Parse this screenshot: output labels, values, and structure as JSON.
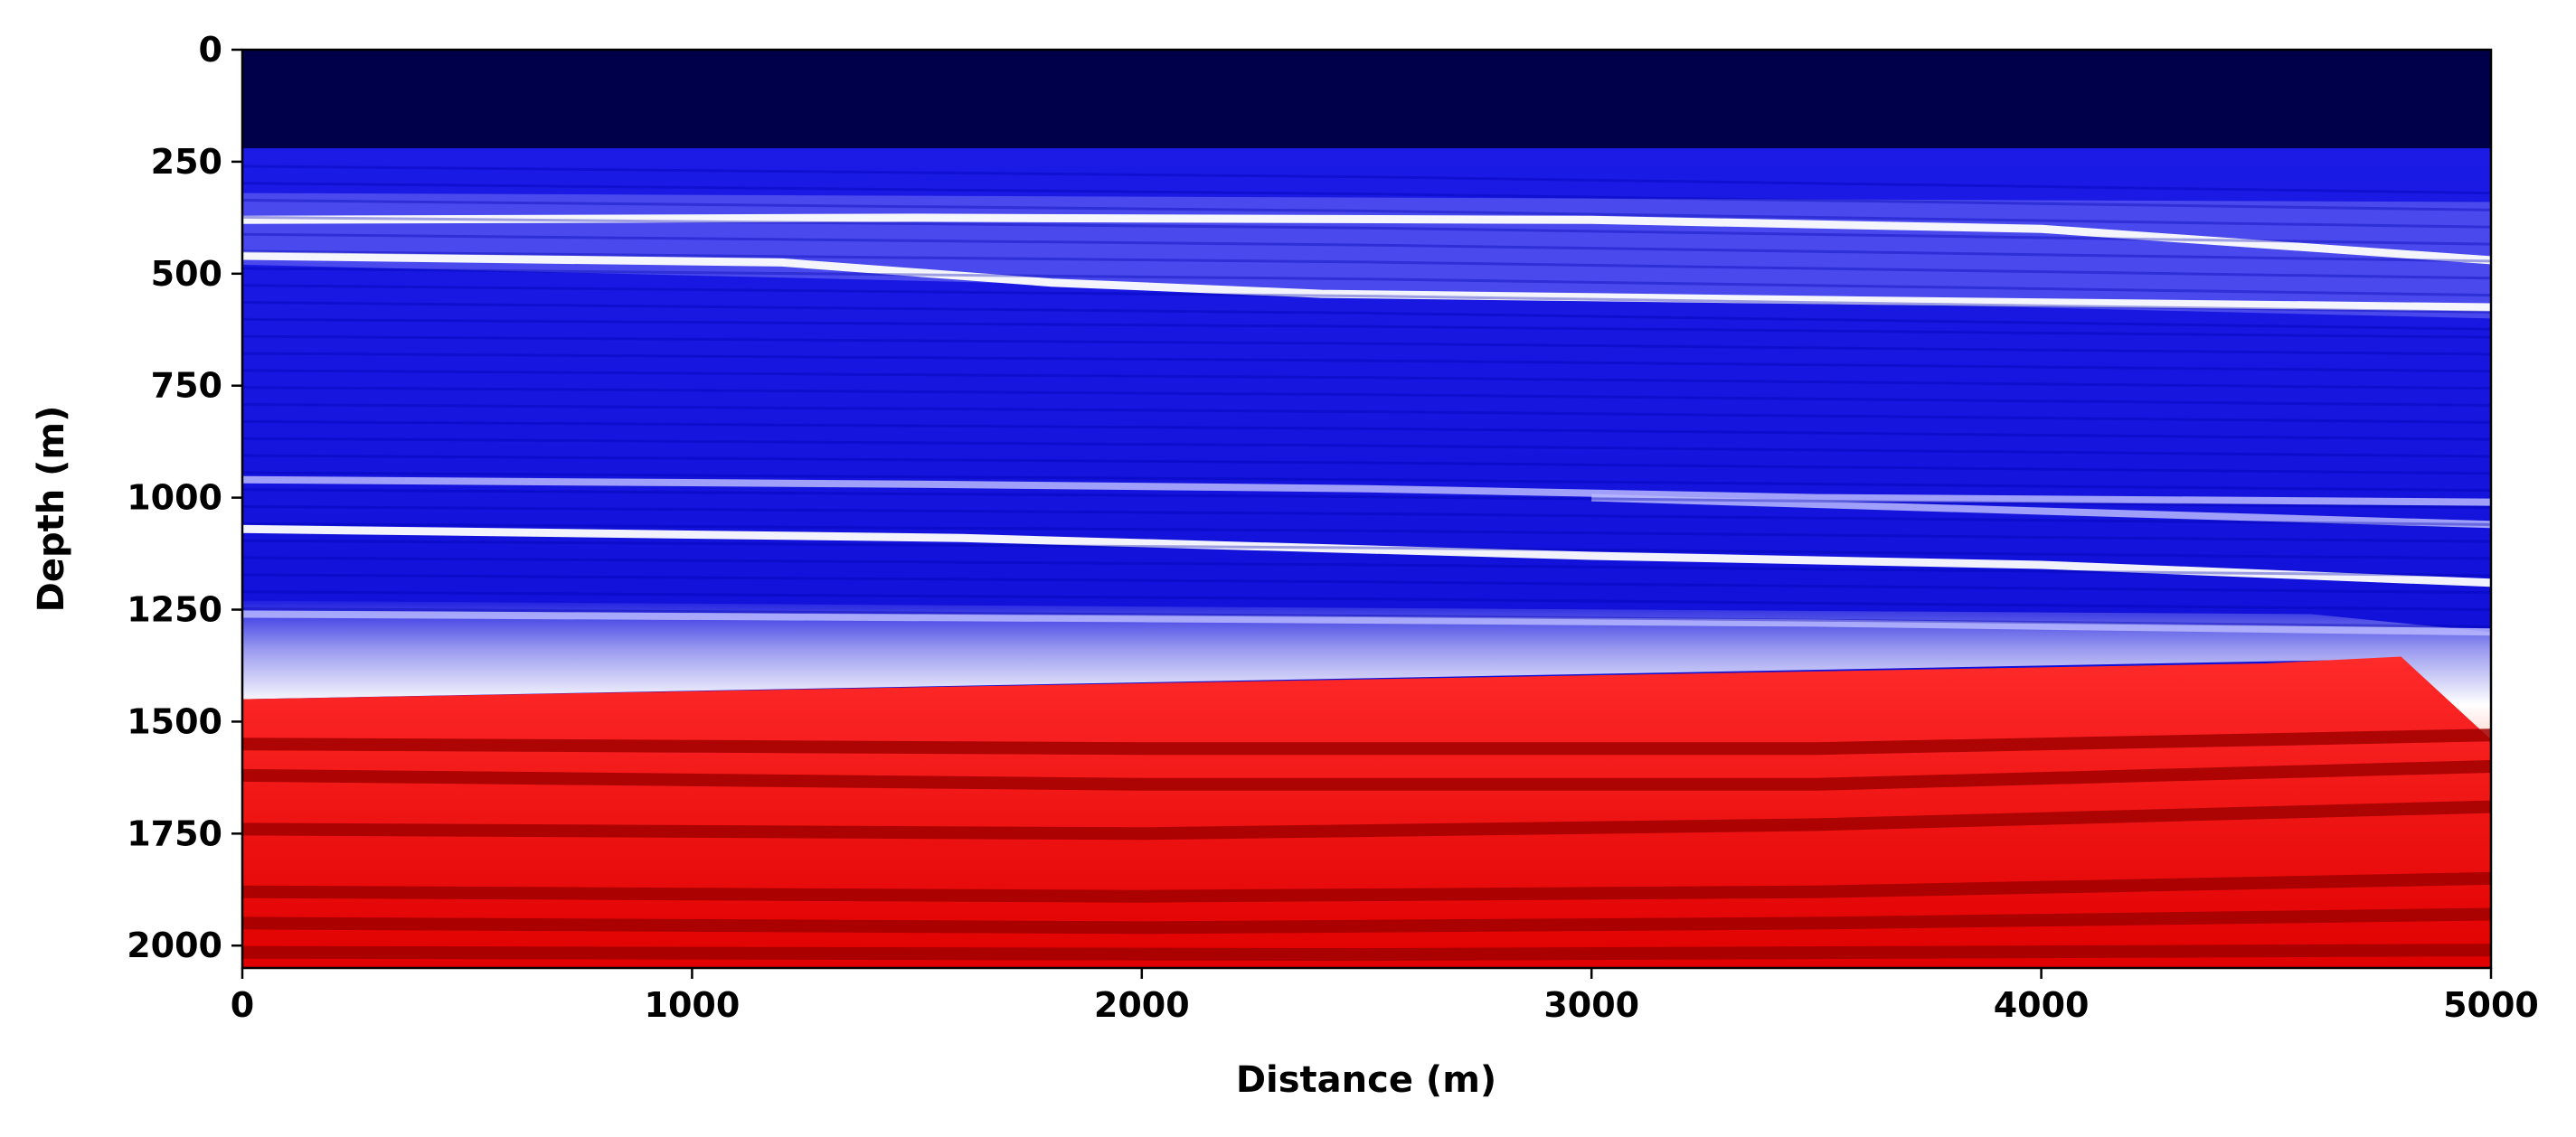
{
  "chart_data": {
    "type": "heatmap",
    "xlabel": "Distance (m)",
    "ylabel": "Depth (m)",
    "xlim": [
      0,
      5000
    ],
    "ylim": [
      2050,
      0
    ],
    "x_ticks": [
      0,
      1000,
      2000,
      3000,
      4000,
      5000
    ],
    "y_ticks": [
      0,
      250,
      500,
      750,
      1000,
      1250,
      1500,
      1750,
      2000
    ],
    "colormap": "seismic",
    "colors": {
      "water": "#00004a",
      "blue": "#0000d8",
      "white": "#f2f2ff",
      "red": "#ff1a1a",
      "dark_red": "#a00000"
    },
    "layers": [
      {
        "label": "water",
        "depth_top": 0,
        "depth_bottom": 220
      },
      {
        "label": "upper-layered-blue",
        "depth_top": 220,
        "depth_bottom_left": 480,
        "depth_bottom_right": 600
      },
      {
        "label": "mid-blue",
        "depth_bottom_left": 1200,
        "depth_bottom_right": 1300
      },
      {
        "label": "transition-white",
        "depth_bottom_left": 1450,
        "depth_bottom_right": 1370
      },
      {
        "label": "red-layered",
        "depth_top_left": 1450,
        "depth_top_right": 1370,
        "depth_bottom": 2050
      }
    ],
    "reflectors": [
      {
        "tone": "white",
        "depths": [
          [
            0,
            460
          ],
          [
            1200,
            475
          ],
          [
            1800,
            520
          ],
          [
            2400,
            545
          ],
          [
            3600,
            560
          ],
          [
            5000,
            575
          ]
        ]
      },
      {
        "tone": "white",
        "depths": [
          [
            0,
            380
          ],
          [
            1500,
            375
          ],
          [
            3000,
            380
          ],
          [
            4000,
            400
          ],
          [
            5000,
            470
          ]
        ]
      },
      {
        "tone": "light",
        "depths": [
          [
            0,
            960
          ],
          [
            1500,
            970
          ],
          [
            2500,
            980
          ],
          [
            3500,
            1000
          ],
          [
            5000,
            1010
          ]
        ]
      },
      {
        "tone": "white",
        "depths": [
          [
            0,
            1070
          ],
          [
            1600,
            1090
          ],
          [
            3000,
            1130
          ],
          [
            4000,
            1150
          ],
          [
            5000,
            1190
          ]
        ]
      },
      {
        "tone": "light",
        "depths": [
          [
            3000,
            1000
          ],
          [
            4000,
            1030
          ],
          [
            5000,
            1060
          ]
        ]
      },
      {
        "tone": "light",
        "depths": [
          [
            0,
            1260
          ],
          [
            2000,
            1270
          ],
          [
            3500,
            1280
          ],
          [
            5000,
            1300
          ]
        ]
      },
      {
        "tone": "dark",
        "depths": [
          [
            0,
            1550
          ],
          [
            2000,
            1560
          ],
          [
            3500,
            1560
          ],
          [
            5000,
            1530
          ]
        ]
      },
      {
        "tone": "dark",
        "depths": [
          [
            0,
            1620
          ],
          [
            2000,
            1640
          ],
          [
            3500,
            1640
          ],
          [
            5000,
            1600
          ]
        ]
      },
      {
        "tone": "dark",
        "depths": [
          [
            0,
            1740
          ],
          [
            2000,
            1750
          ],
          [
            3500,
            1730
          ],
          [
            5000,
            1690
          ]
        ]
      },
      {
        "tone": "dark",
        "depths": [
          [
            0,
            1880
          ],
          [
            2000,
            1890
          ],
          [
            3500,
            1880
          ],
          [
            5000,
            1850
          ]
        ]
      },
      {
        "tone": "dark",
        "depths": [
          [
            0,
            1950
          ],
          [
            2000,
            1960
          ],
          [
            3500,
            1950
          ],
          [
            5000,
            1930
          ]
        ]
      },
      {
        "tone": "dark",
        "depths": [
          [
            0,
            2015
          ],
          [
            2500,
            2020
          ],
          [
            5000,
            2010
          ]
        ]
      }
    ]
  }
}
